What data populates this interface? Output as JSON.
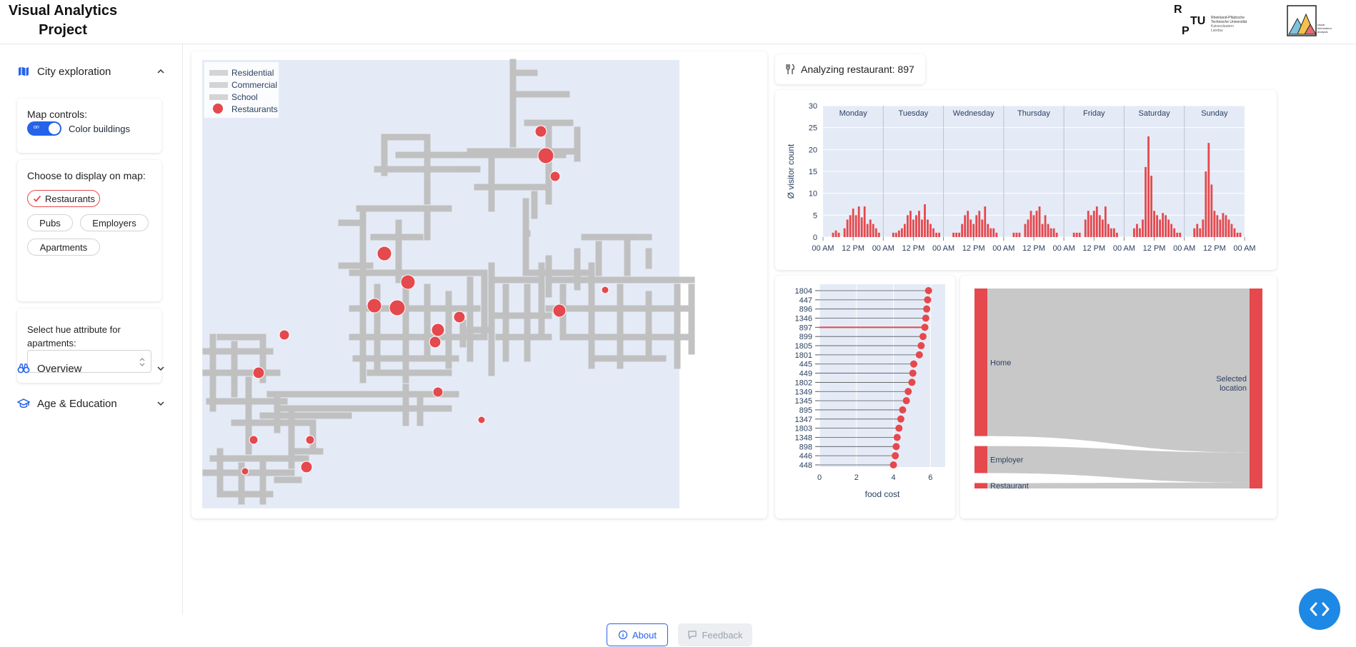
{
  "header": {
    "title": "Visual Analytics Project",
    "logo_rptu_letters": [
      "R",
      "P",
      "TU"
    ],
    "logo_rptu_lines": [
      "Rheinland-Pfälzische",
      "Technische Universität",
      "Kaiserslautern",
      "Landau"
    ],
    "logo_va_lines": [
      "visual",
      "information",
      "analysis"
    ]
  },
  "sidebar": {
    "city_exploration": {
      "label": "City exploration",
      "map_controls": {
        "title": "Map controls:",
        "toggle_text": "on",
        "toggle_label": "Color buildings",
        "toggle_on": true
      },
      "display": {
        "title": "Choose to display on map:",
        "chips": [
          {
            "label": "Restaurants",
            "selected": true
          },
          {
            "label": "Pubs",
            "selected": false
          },
          {
            "label": "Employers",
            "selected": false
          },
          {
            "label": "Apartments",
            "selected": false
          }
        ]
      },
      "hue": {
        "title": "Select hue attribute for apartments:",
        "value": ""
      }
    },
    "overview": {
      "label": "Overview"
    },
    "age_education": {
      "label": "Age & Education"
    }
  },
  "map": {
    "legend": [
      {
        "label": "Residential",
        "color": "#d4d4d4"
      },
      {
        "label": "Commercial",
        "color": "#d4d4d4"
      },
      {
        "label": "School",
        "color": "#d4d4d4"
      },
      {
        "label": "Restaurants",
        "color": "#e5484d"
      }
    ]
  },
  "analyzing": {
    "label": "Analyzing restaurant: 897",
    "icon": "utensils-icon"
  },
  "colors": {
    "accent": "#e5484d",
    "plot_bg": "#e5ebf6",
    "primary": "#2563eb",
    "fab": "#1e88e5"
  },
  "chart_data": [
    {
      "type": "bar",
      "ylabel": "Ø visitor count",
      "ylim": [
        0,
        30
      ],
      "yticks": [
        0,
        5,
        10,
        15,
        20,
        25,
        30
      ],
      "facets": [
        "Monday",
        "Tuesday",
        "Wednesday",
        "Thursday",
        "Friday",
        "Saturday",
        "Sunday"
      ],
      "xtick_labels": [
        "00 AM",
        "12 PM",
        "00 AM"
      ],
      "series": [
        {
          "name": "Monday",
          "values": [
            0,
            0,
            1,
            1.5,
            1,
            0,
            2,
            4,
            5,
            6.5,
            5,
            7,
            4.5,
            7,
            3,
            4,
            3,
            2,
            1
          ]
        },
        {
          "name": "Tuesday",
          "values": [
            0,
            0,
            1,
            1,
            1.5,
            2,
            3,
            5,
            6,
            4,
            5,
            6,
            4,
            7.5,
            4,
            3,
            2,
            1,
            1
          ]
        },
        {
          "name": "Wednesday",
          "values": [
            0,
            0,
            1,
            1,
            1,
            3,
            5,
            6,
            4,
            3,
            5,
            6,
            4,
            7,
            3,
            2,
            2,
            1,
            0
          ]
        },
        {
          "name": "Thursday",
          "values": [
            0,
            0,
            1,
            1,
            1,
            0,
            3,
            4,
            6,
            5,
            6,
            7,
            3,
            5,
            3,
            2,
            2,
            1,
            0
          ]
        },
        {
          "name": "Friday",
          "values": [
            0,
            0,
            1,
            1,
            1,
            0,
            4,
            6,
            5,
            6,
            7,
            5,
            4,
            7,
            3,
            2,
            2,
            1,
            0
          ]
        },
        {
          "name": "Saturday",
          "values": [
            0,
            0,
            2,
            3,
            2,
            4,
            16,
            23,
            14,
            6,
            5,
            4,
            5.5,
            5,
            4,
            3,
            2,
            1,
            1
          ]
        },
        {
          "name": "Sunday",
          "values": [
            0,
            0,
            2,
            3,
            2,
            4,
            15,
            21.5,
            12,
            6,
            5,
            4,
            5.5,
            5,
            4,
            3,
            2,
            1,
            1
          ]
        }
      ]
    },
    {
      "type": "scatter",
      "xlabel": "food cost",
      "xlim": [
        0,
        6.8
      ],
      "xticks": [
        0,
        2,
        4,
        6
      ],
      "highlight": "897",
      "categories": [
        "1804",
        "447",
        "896",
        "1346",
        "897",
        "899",
        "1805",
        "1801",
        "445",
        "449",
        "1802",
        "1349",
        "1345",
        "895",
        "1347",
        "1803",
        "1348",
        "898",
        "446",
        "448"
      ],
      "values": [
        5.9,
        5.85,
        5.8,
        5.75,
        5.7,
        5.6,
        5.5,
        5.4,
        5.1,
        5.05,
        5.0,
        4.8,
        4.7,
        4.5,
        4.4,
        4.3,
        4.2,
        4.15,
        4.1,
        4.0
      ]
    },
    {
      "type": "sankey",
      "nodes_left": [
        "Home",
        "Employer",
        "Restaurant"
      ],
      "node_right": "Selected location",
      "flows": [
        {
          "from": "Home",
          "share": 0.82
        },
        {
          "from": "Employer",
          "share": 0.15
        },
        {
          "from": "Restaurant",
          "share": 0.03
        }
      ]
    }
  ],
  "footer": {
    "about": "About",
    "feedback": "Feedback"
  }
}
